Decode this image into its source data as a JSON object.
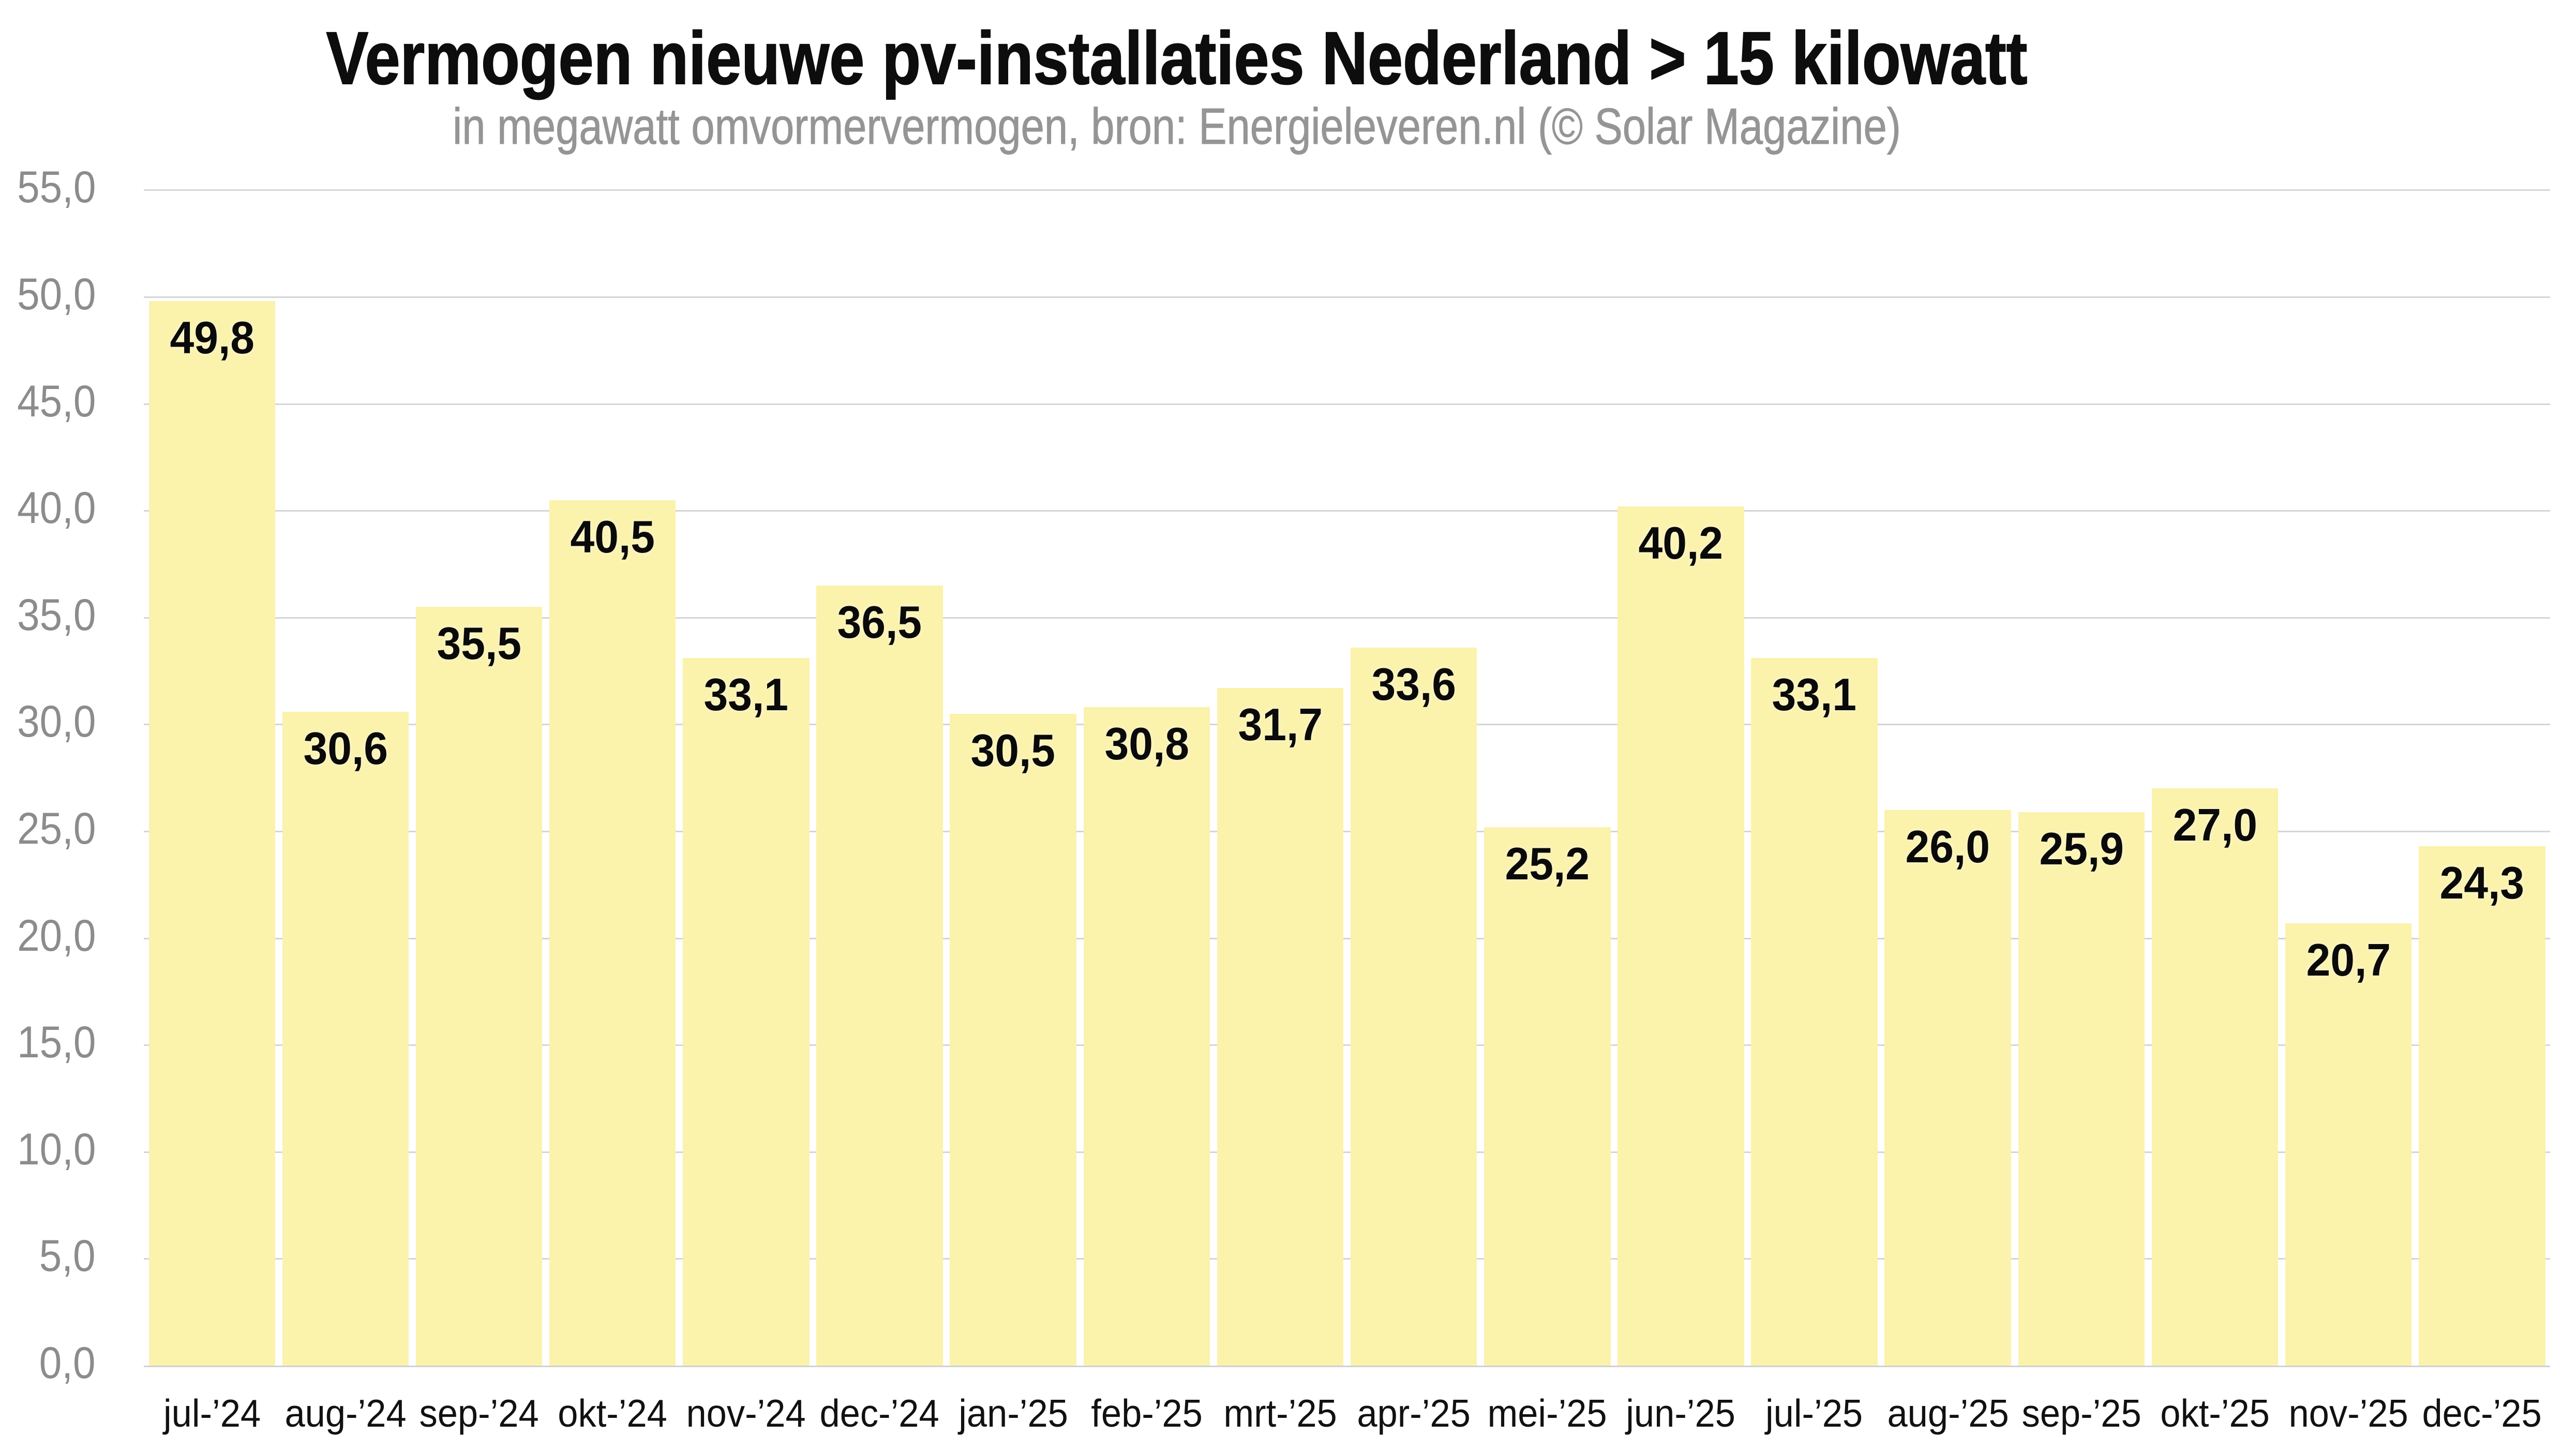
{
  "chart_data": {
    "type": "bar",
    "title": "Vermogen nieuwe pv-installaties Nederland > 15 kilowatt",
    "subtitle": "in megawatt omvormervermogen, bron: Energieleveren.nl (© Solar Magazine)",
    "categories": [
      "jul-’24",
      "aug-’24",
      "sep-’24",
      "okt-’24",
      "nov-’24",
      "dec-’24",
      "jan-’25",
      "feb-’25",
      "mrt-’25",
      "apr-’25",
      "mei-’25",
      "jun-’25",
      "jul-’25",
      "aug-’25",
      "sep-’25",
      "okt-’25",
      "nov-’25",
      "dec-’25"
    ],
    "values": [
      49.8,
      30.6,
      35.5,
      40.5,
      33.1,
      36.5,
      30.5,
      30.8,
      31.7,
      33.6,
      25.2,
      40.2,
      33.1,
      26.0,
      25.9,
      27.0,
      20.7,
      24.3
    ],
    "value_labels": [
      "49,8",
      "30,6",
      "35,5",
      "40,5",
      "33,1",
      "36,5",
      "30,5",
      "30,8",
      "31,7",
      "33,6",
      "25,2",
      "40,2",
      "33,1",
      "26,0",
      "25,9",
      "27,0",
      "20,7",
      "24,3"
    ],
    "y_axis": {
      "ticks": [
        {
          "value": 0,
          "label": "0,0"
        },
        {
          "value": 5,
          "label": "5,0"
        },
        {
          "value": 10,
          "label": "10,0"
        },
        {
          "value": 15,
          "label": "15,0"
        },
        {
          "value": 20,
          "label": "20,0"
        },
        {
          "value": 25,
          "label": "25,0"
        },
        {
          "value": 30,
          "label": "30,0"
        },
        {
          "value": 35,
          "label": "35,0"
        },
        {
          "value": 40,
          "label": "40,0"
        },
        {
          "value": 45,
          "label": "45,0"
        },
        {
          "value": 50,
          "label": "50,0"
        },
        {
          "value": 55,
          "label": "55,0"
        }
      ],
      "range": [
        0,
        55
      ]
    },
    "xlabel": "",
    "ylabel": "",
    "grid": "horizontal",
    "legend": "none",
    "colors": {
      "bar": "#FBF2AB",
      "gridline": "#D3D5D6",
      "axis_line": "#CFD1D2",
      "title": "#0D0D0D",
      "subtitle": "#959595",
      "y_tick": "#8C8C8C",
      "x_tick": "#111111",
      "value_label": "#0A0A0A",
      "background": "#FFFFFF"
    }
  }
}
